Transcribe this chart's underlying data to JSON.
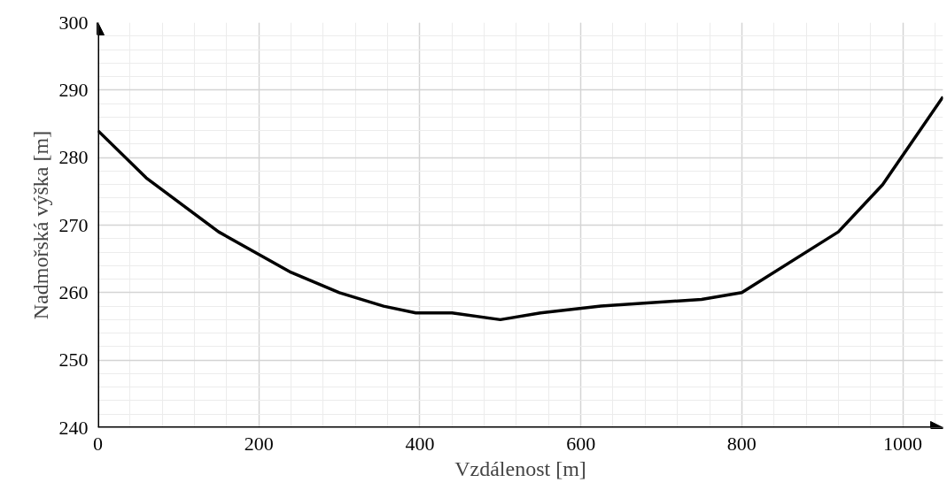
{
  "chart_data": {
    "type": "line",
    "xlabel": "Vzdálenost [m]",
    "ylabel": "Nadmořská výška [m]",
    "x": [
      0,
      60,
      150,
      240,
      300,
      355,
      395,
      440,
      500,
      550,
      625,
      750,
      800,
      920,
      975,
      1050
    ],
    "series": [
      {
        "color": "#000000",
        "values": [
          284,
          277,
          269,
          263,
          260,
          258,
          257,
          257,
          256,
          257,
          258,
          259,
          260,
          269,
          276,
          289
        ]
      }
    ],
    "xlim": [
      0,
      1050
    ],
    "ylim": [
      240,
      300
    ],
    "xticks": [
      0,
      200,
      400,
      600,
      800,
      1000
    ],
    "yticks": [
      240,
      250,
      260,
      270,
      280,
      290,
      300
    ],
    "grid": true,
    "marker": "none",
    "line_style": "solid"
  }
}
